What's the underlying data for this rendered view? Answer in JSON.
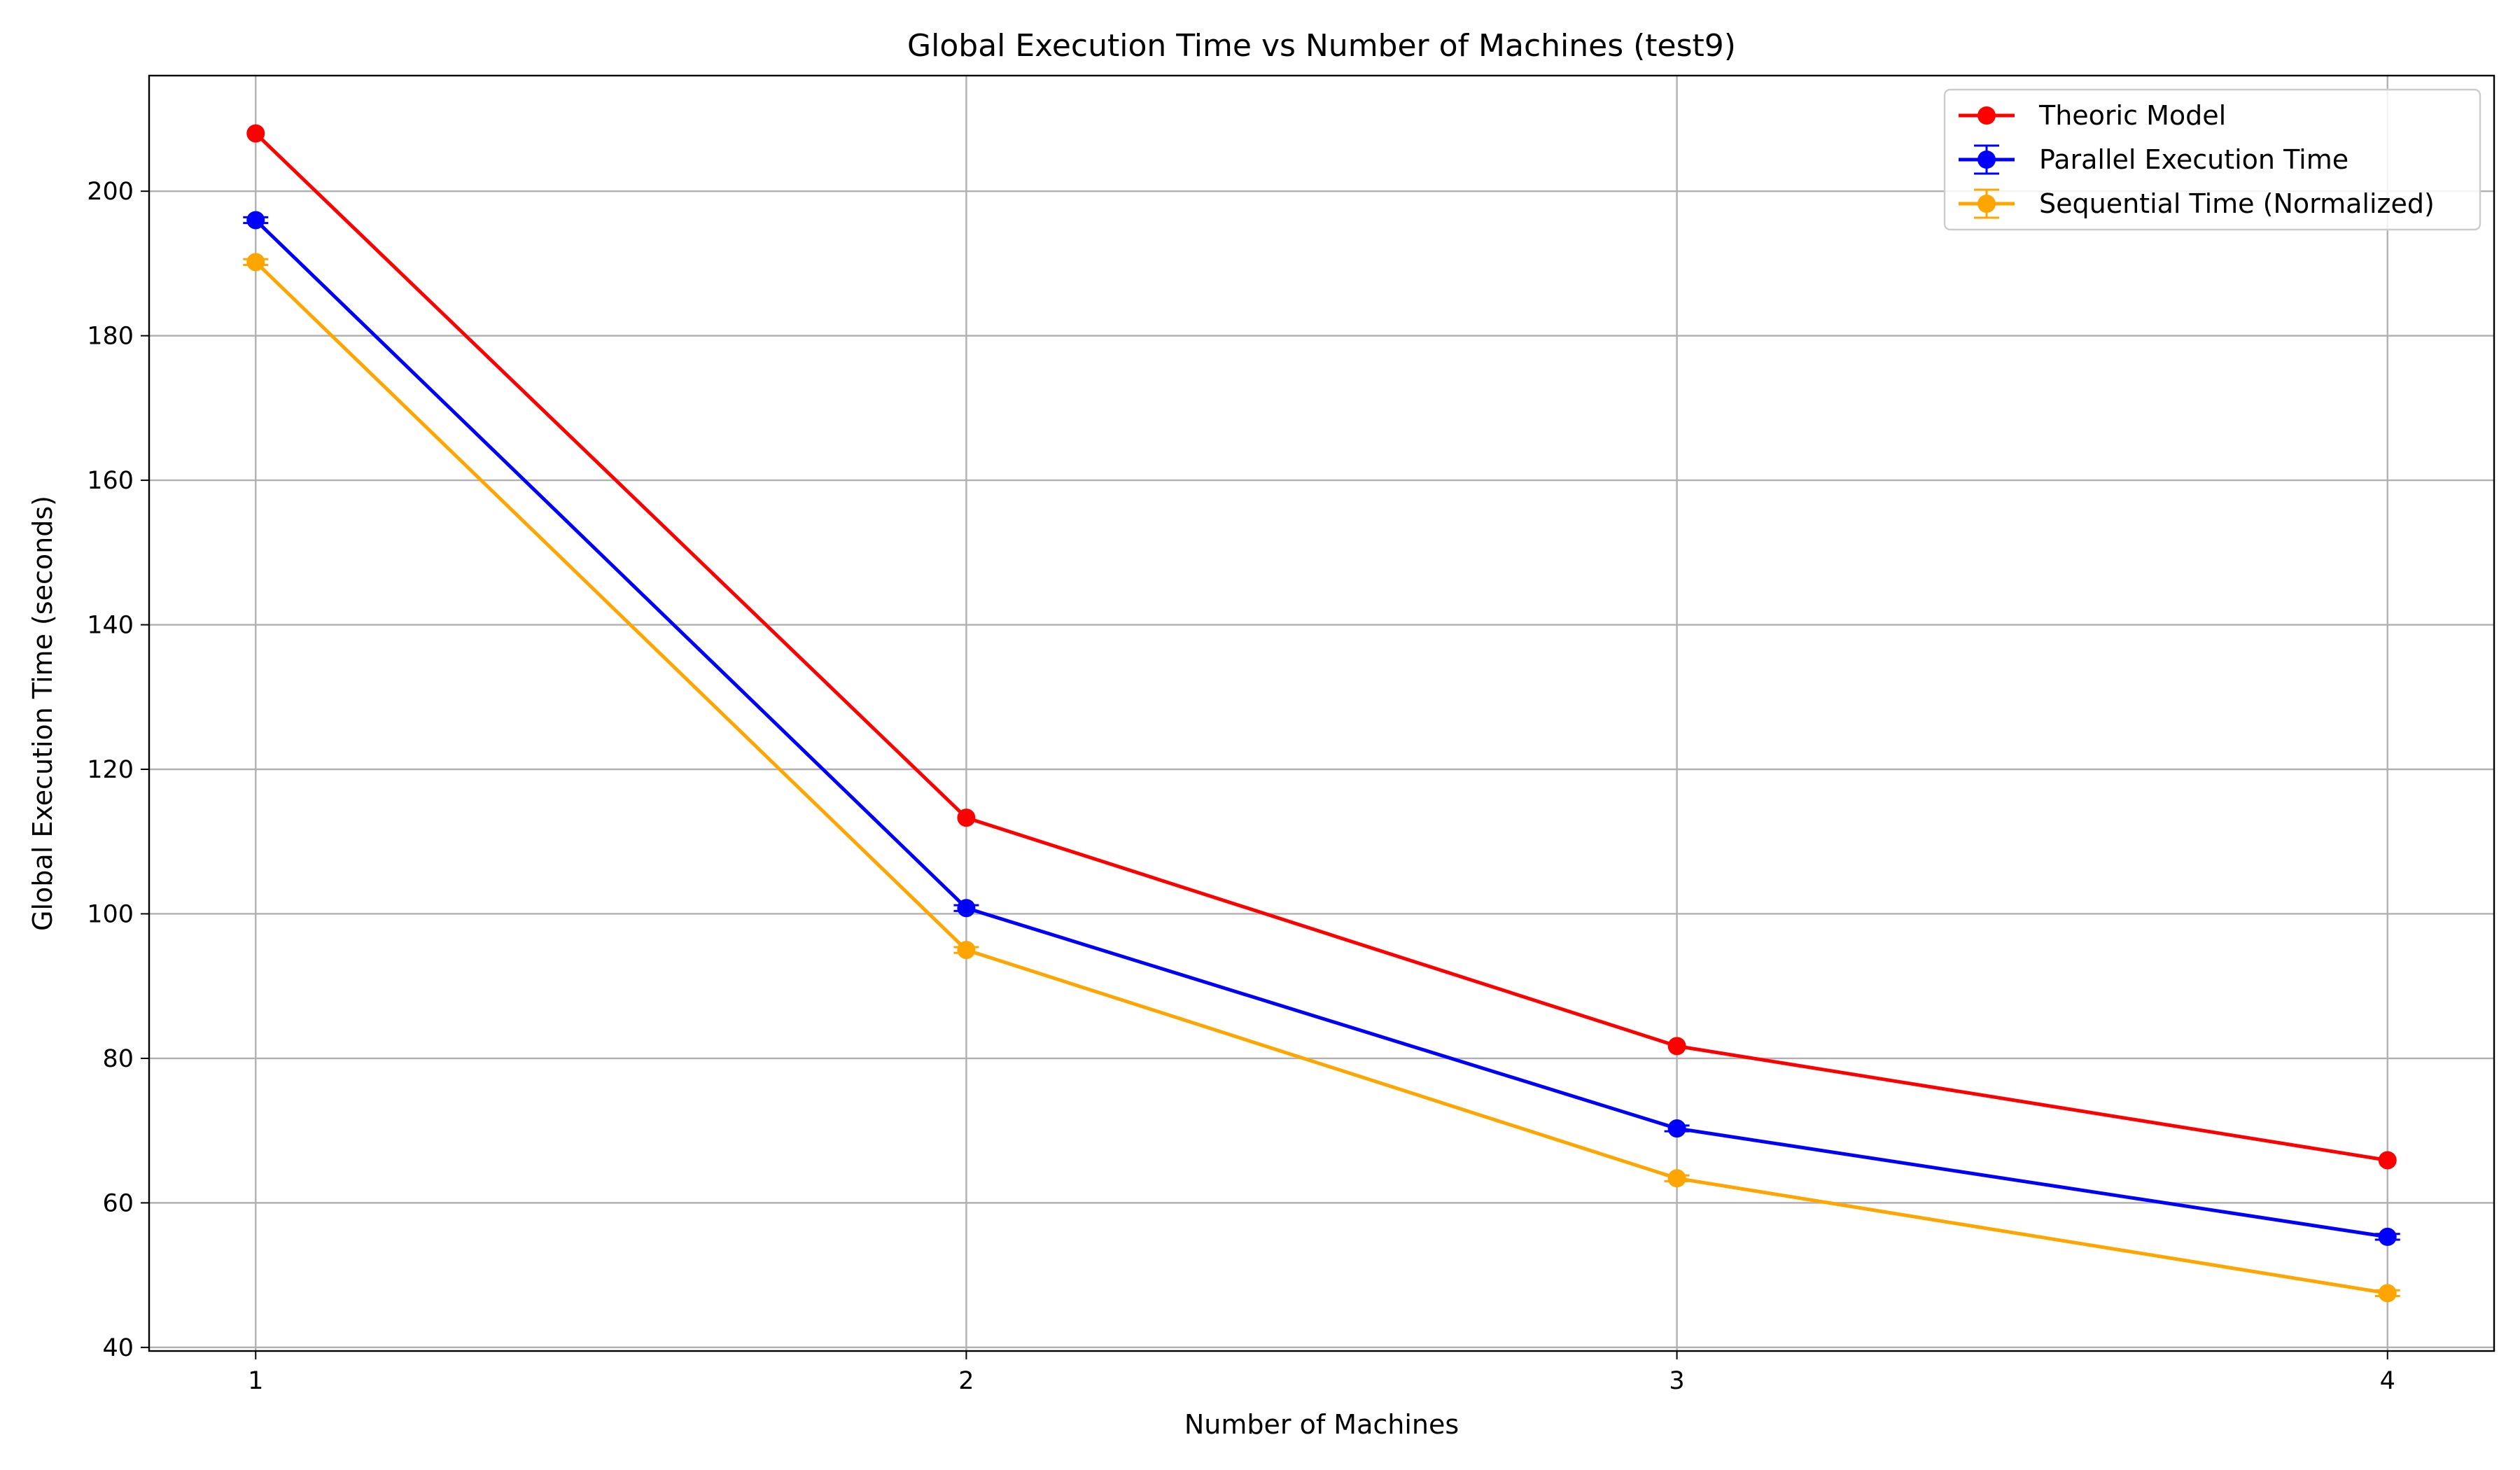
{
  "chart_data": {
    "type": "line",
    "title": "Global Execution Time vs Number of Machines (test9)",
    "xlabel": "Number of Machines",
    "ylabel": "Global Execution Time (seconds)",
    "x": [
      1,
      2,
      3,
      4
    ],
    "xlim": [
      0.85,
      4.15
    ],
    "ylim": [
      39.5,
      216
    ],
    "xticks": [
      1,
      2,
      3,
      4
    ],
    "yticks": [
      40,
      60,
      80,
      100,
      120,
      140,
      160,
      180,
      200
    ],
    "grid": true,
    "legend_position": "top-right",
    "series": [
      {
        "name": "Theoric Model",
        "color": "#ff0000",
        "values": [
          208.0,
          113.3,
          81.7,
          65.9
        ],
        "errorbars": false
      },
      {
        "name": "Parallel Execution Time",
        "color": "#0000ff",
        "values": [
          196.0,
          100.8,
          70.3,
          55.3
        ],
        "errors": [
          0.4,
          0.4,
          0.4,
          0.4
        ],
        "errorbars": true
      },
      {
        "name": "Sequential Time (Normalized)",
        "color": "#ffa500",
        "values": [
          190.2,
          95.0,
          63.4,
          47.5
        ],
        "errors": [
          0.4,
          0.4,
          0.4,
          0.4
        ],
        "errorbars": true
      }
    ]
  }
}
